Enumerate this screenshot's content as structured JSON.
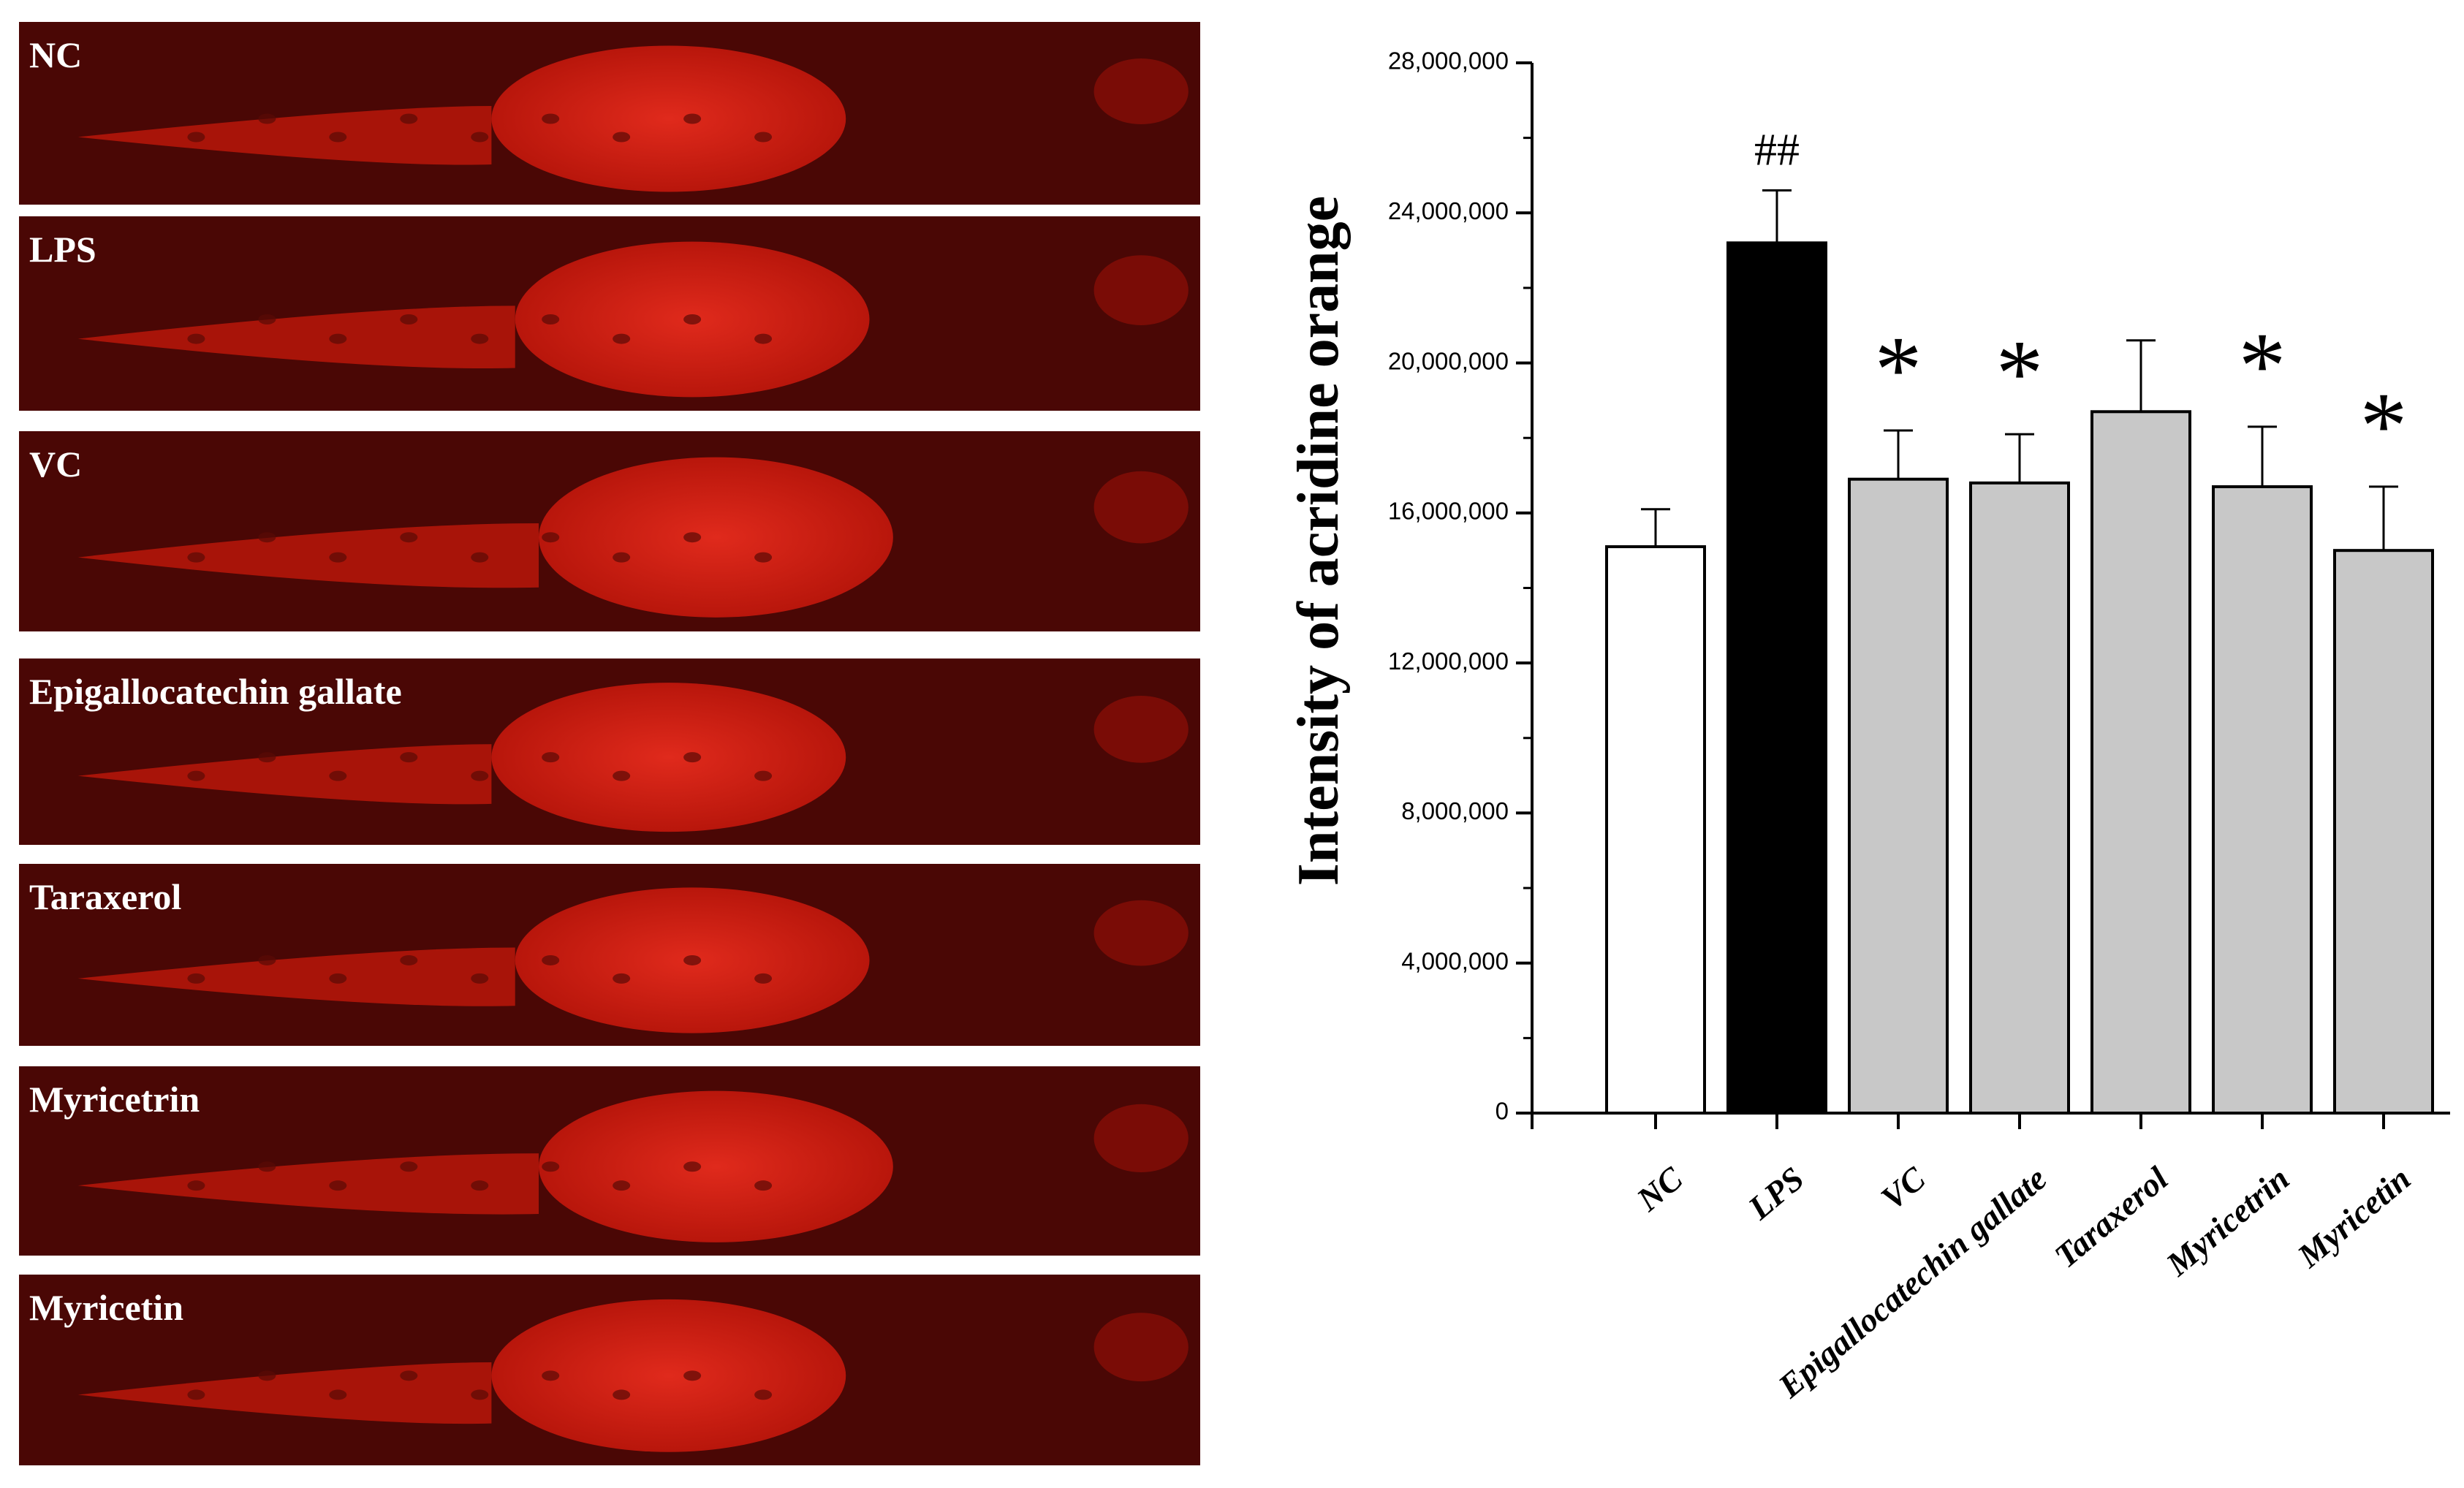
{
  "panels": [
    {
      "label": "NC"
    },
    {
      "label": "LPS"
    },
    {
      "label": "VC"
    },
    {
      "label": "Epigallocatechin gallate"
    },
    {
      "label": "Taraxerol"
    },
    {
      "label": "Myricetrin"
    },
    {
      "label": "Myricetin"
    }
  ],
  "chart_data": {
    "type": "bar",
    "y_label": "Intensity of acridine orange",
    "categories": [
      "NC",
      "LPS",
      "VC",
      "Epigallocatechin gallate",
      "Taraxerol",
      "Myricetrin",
      "Myricetin"
    ],
    "values": [
      15100000,
      23200000,
      16900000,
      16800000,
      18700000,
      16700000,
      15000000
    ],
    "errors": [
      1000000,
      1400000,
      1300000,
      1300000,
      1900000,
      1600000,
      1700000
    ],
    "colors": [
      "#ffffff",
      "#000000",
      "#c8c8c8",
      "#c8c8c8",
      "#c8c8c8",
      "#c8c8c8",
      "#c8c8c8"
    ],
    "annotations": [
      {
        "category": "LPS",
        "text": "##"
      },
      {
        "category": "VC",
        "text": "*"
      },
      {
        "category": "Epigallocatechin gallate",
        "text": "*"
      },
      {
        "category": "Myricetrin",
        "text": "*"
      },
      {
        "category": "Myricetin",
        "text": "*"
      }
    ],
    "ylim": [
      0,
      28000000
    ],
    "yticks": [
      0,
      {
        "value": 4000000,
        "label": "4,000,000"
      },
      {
        "value": 8000000,
        "label": "8,000,000"
      },
      {
        "value": 12000000,
        "label": "12,000,000"
      },
      {
        "value": 16000000,
        "label": "16,000,000"
      },
      {
        "value": 20000000,
        "label": "20,000,000"
      },
      {
        "value": 24000000,
        "label": "24,000,000"
      },
      {
        "value": 28000000,
        "label": "28,000,000"
      }
    ]
  }
}
